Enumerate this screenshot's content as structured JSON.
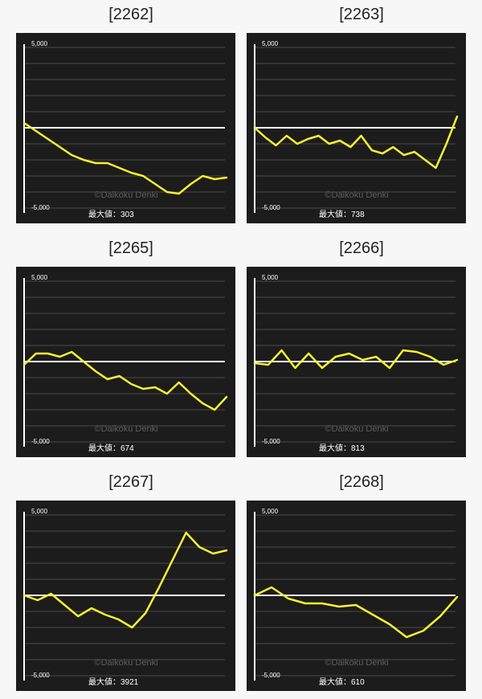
{
  "page": {
    "colors": {
      "background": "#f7f7f7",
      "panel": "#1c1c1c",
      "grid": "#4a4a4a",
      "zero_line": "#ffffff",
      "line": "#f5f232",
      "text": "#ffffff",
      "watermark": "#5e5e5e"
    }
  },
  "charts": [
    {
      "title": "[2262]",
      "max_label": "最大値：303",
      "watermark": "©Daikoku Denki",
      "ytick_top": "5,000",
      "ytick_bottom": "-5,000"
    },
    {
      "title": "[2263]",
      "max_label": "最大値：738",
      "watermark": "©Daikoku Denki",
      "ytick_top": "5,000",
      "ytick_bottom": "-5,000"
    },
    {
      "title": "[2265]",
      "max_label": "最大値：674",
      "watermark": "©Daikoku Denki",
      "ytick_top": "5,000",
      "ytick_bottom": "-5,000"
    },
    {
      "title": "[2266]",
      "max_label": "最大値：813",
      "watermark": "©Daikoku Denki",
      "ytick_top": "5,000",
      "ytick_bottom": "-5,000"
    },
    {
      "title": "[2267]",
      "max_label": "最大値：3921",
      "watermark": "©Daikoku Denki",
      "ytick_top": "5,000",
      "ytick_bottom": "-5,000"
    },
    {
      "title": "[2268]",
      "max_label": "最大値：610",
      "watermark": "©Daikoku Denki",
      "ytick_top": "5,000",
      "ytick_bottom": "-5,000"
    }
  ],
  "chart_data": [
    {
      "type": "line",
      "title": "[2262]",
      "ylim": [
        -5000,
        5000
      ],
      "yticks": [
        "5,000",
        "-5,000"
      ],
      "grid": true,
      "max_value": 303,
      "series": [
        {
          "values": [
            300,
            -200,
            -700,
            -1200,
            -1700,
            -2000,
            -2200,
            -2200,
            -2500,
            -2800,
            -3000,
            -3500,
            -4000,
            -4100,
            -3500,
            -3000,
            -3200,
            -3100
          ]
        }
      ]
    },
    {
      "type": "line",
      "title": "[2263]",
      "ylim": [
        -5000,
        5000
      ],
      "yticks": [
        "5,000",
        "-5,000"
      ],
      "grid": true,
      "max_value": 738,
      "series": [
        {
          "values": [
            0,
            -600,
            -1100,
            -500,
            -1000,
            -700,
            -500,
            -1000,
            -800,
            -1200,
            -500,
            -1400,
            -1600,
            -1200,
            -1700,
            -1500,
            -2000,
            -2500,
            -1000,
            700
          ]
        }
      ]
    },
    {
      "type": "line",
      "title": "[2265]",
      "ylim": [
        -5000,
        5000
      ],
      "yticks": [
        "5,000",
        "-5,000"
      ],
      "grid": true,
      "max_value": 674,
      "series": [
        {
          "values": [
            -200,
            500,
            500,
            300,
            600,
            0,
            -600,
            -1100,
            -900,
            -1400,
            -1700,
            -1600,
            -2000,
            -1300,
            -2000,
            -2600,
            -3000,
            -2200
          ]
        }
      ]
    },
    {
      "type": "line",
      "title": "[2266]",
      "ylim": [
        -5000,
        5000
      ],
      "yticks": [
        "5,000",
        "-5,000"
      ],
      "grid": true,
      "max_value": 813,
      "series": [
        {
          "values": [
            -100,
            -200,
            700,
            -400,
            500,
            -400,
            300,
            500,
            100,
            300,
            -400,
            700,
            600,
            300,
            -200,
            100
          ]
        }
      ]
    },
    {
      "type": "line",
      "title": "[2267]",
      "ylim": [
        -5000,
        5000
      ],
      "yticks": [
        "5,000",
        "-5,000"
      ],
      "grid": true,
      "max_value": 3921,
      "series": [
        {
          "values": [
            0,
            -300,
            100,
            -600,
            -1300,
            -800,
            -1200,
            -1500,
            -2000,
            -1100,
            500,
            2200,
            3900,
            3000,
            2600,
            2800
          ]
        }
      ]
    },
    {
      "type": "line",
      "title": "[2268]",
      "ylim": [
        -5000,
        5000
      ],
      "yticks": [
        "5,000",
        "-5,000"
      ],
      "grid": true,
      "max_value": 610,
      "series": [
        {
          "values": [
            0,
            500,
            -200,
            -500,
            -500,
            -700,
            -600,
            -1200,
            -1800,
            -2600,
            -2200,
            -1300,
            -100
          ]
        }
      ]
    }
  ]
}
